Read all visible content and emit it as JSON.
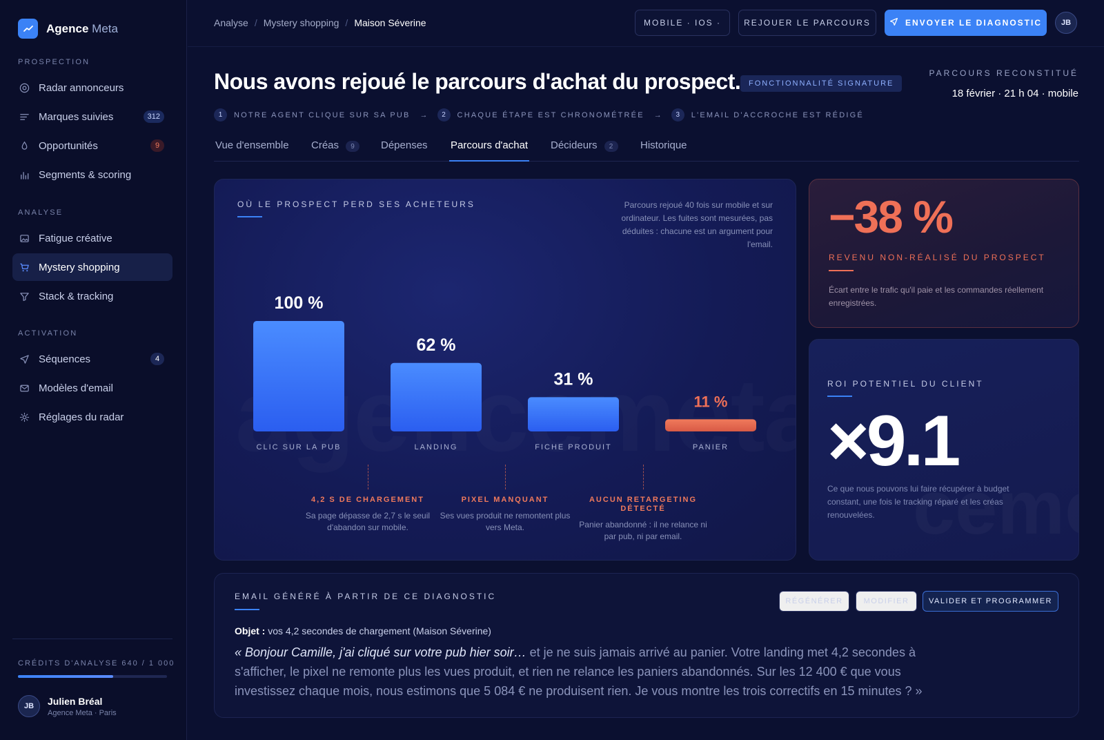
{
  "sidebar": {
    "brand": {
      "name_main": "Agence",
      "name_accent": "Meta"
    },
    "sections": {
      "prospection": "PROSPECTION",
      "analyse": "ANALYSE",
      "activation": "ACTIVATION"
    },
    "items": [
      {
        "label": "Radar annonceurs",
        "icon": "radar-icon"
      },
      {
        "label": "Marques suivies",
        "icon": "list-icon",
        "badge": "312"
      },
      {
        "label": "Opportunités",
        "icon": "drop-icon",
        "badge": "9"
      },
      {
        "label": "Segments & scoring",
        "icon": "bar-chart-icon"
      },
      {
        "label": "Fatigue créative",
        "icon": "image-icon"
      },
      {
        "label": "Mystery shopping",
        "icon": "cart-icon",
        "active": true
      },
      {
        "label": "Stack & tracking",
        "icon": "filter-icon"
      },
      {
        "label": "Séquences",
        "icon": "send-icon",
        "badge": "4"
      },
      {
        "label": "Modèles d'email",
        "icon": "mail-icon"
      },
      {
        "label": "Réglages du radar",
        "icon": "gear-icon"
      }
    ],
    "credits": {
      "label": "CRÉDITS D'ANALYSE 640 / 1 000",
      "used": 640,
      "total": 1000
    },
    "user": {
      "initials": "JB",
      "name": "Julien Bréal",
      "org": "Agence Meta · Paris"
    }
  },
  "topbar": {
    "breadcrumb": [
      "Analyse",
      "Mystery shopping",
      "Maison Séverine"
    ],
    "device_button": "MOBILE · IOS ·",
    "replay_button": "REJOUER LE PARCOURS",
    "send_button": "ENVOYER LE DIAGNOSTIC",
    "avatar": "JB"
  },
  "header": {
    "title": "Nous avons rejoué le parcours d'achat du prospect.",
    "badge": "FONCTIONNALITÉ SIGNATURE",
    "rebuilt_label": "PARCOURS RECONSTITUÉ",
    "rebuilt_date": "18 février · 21 h 04 · mobile",
    "steps": [
      {
        "num": "1",
        "label": "NOTRE AGENT CLIQUE SUR SA PUB"
      },
      {
        "num": "2",
        "label": "CHAQUE ÉTAPE EST CHRONOMÉTRÉE"
      },
      {
        "num": "3",
        "label": "L'EMAIL D'ACCROCHE EST RÉDIGÉ"
      }
    ],
    "step_arrow": "→"
  },
  "tabs": [
    {
      "label": "Vue d'ensemble"
    },
    {
      "label": "Créas",
      "count": "9"
    },
    {
      "label": "Dépenses"
    },
    {
      "label": "Parcours d'achat",
      "active": true
    },
    {
      "label": "Décideurs",
      "count": "2"
    },
    {
      "label": "Historique"
    }
  ],
  "funnel": {
    "title": "OÙ LE PROSPECT PERD SES ACHETEURS",
    "note": "Parcours rejoué 40 fois sur mobile et sur ordinateur. Les fuites sont mesurées, pas déduites : chacune est un argument pour l'email.",
    "watermark": "agencemeta",
    "leaks": [
      {
        "title": "4,2 S DE CHARGEMENT",
        "text": "Sa page dépasse de 2,7 s le seuil d'abandon sur mobile."
      },
      {
        "title": "PIXEL MANQUANT",
        "text": "Ses vues produit ne remontent plus vers Meta."
      },
      {
        "title": "AUCUN RETARGETING DÉTECTÉ",
        "text": "Panier abandonné : il ne relance ni par pub, ni par email."
      }
    ]
  },
  "chart_data": {
    "type": "bar",
    "categories": [
      "CLIC SUR LA PUB",
      "LANDING",
      "FICHE PRODUIT",
      "PANIER"
    ],
    "values": [
      100,
      62,
      31,
      11
    ],
    "value_labels": [
      "100 %",
      "62 %",
      "31 %",
      "11 %"
    ],
    "ylim": [
      0,
      100
    ],
    "colors": [
      "#3b82f6",
      "#3b82f6",
      "#3b82f6",
      "#ef7057"
    ],
    "grid": false
  },
  "revenue": {
    "value": "−38 %",
    "label": "REVENU NON-RÉALISÉ DU PROSPECT",
    "text": "Écart entre le trafic qu'il paie et les commandes réellement enregistrées."
  },
  "roi": {
    "label": "ROI POTENTIEL DU CLIENT",
    "value": "×9.1",
    "text": "Ce que nous pouvons lui faire récupérer à budget constant, une fois le tracking réparé et les créas renouvelées.",
    "watermark": "cemeta"
  },
  "email": {
    "title": "EMAIL GÉNÉRÉ À PARTIR DE CE DIAGNOSTIC",
    "regenerate": "RÉGÉNÉRER",
    "modify": "MODIFIER",
    "validate": "VALIDER ET PROGRAMMER",
    "subject_label": "Objet :",
    "subject": "vos 4,2 secondes de chargement (Maison Séverine)",
    "body_intro": "« Bonjour Camille, j'ai cliqué sur votre pub hier soir…",
    "body_rest": " et je ne suis jamais arrivé au panier. Votre landing met 4,2 secondes à s'afficher, le pixel ne remonte plus les vues produit, et rien ne relance les paniers abandonnés. Sur les 12 400 € que vous investissez chaque mois, nous estimons que 5 084 € ne produisent rien. Je vous montre les trois correctifs en 15 minutes ? »"
  }
}
